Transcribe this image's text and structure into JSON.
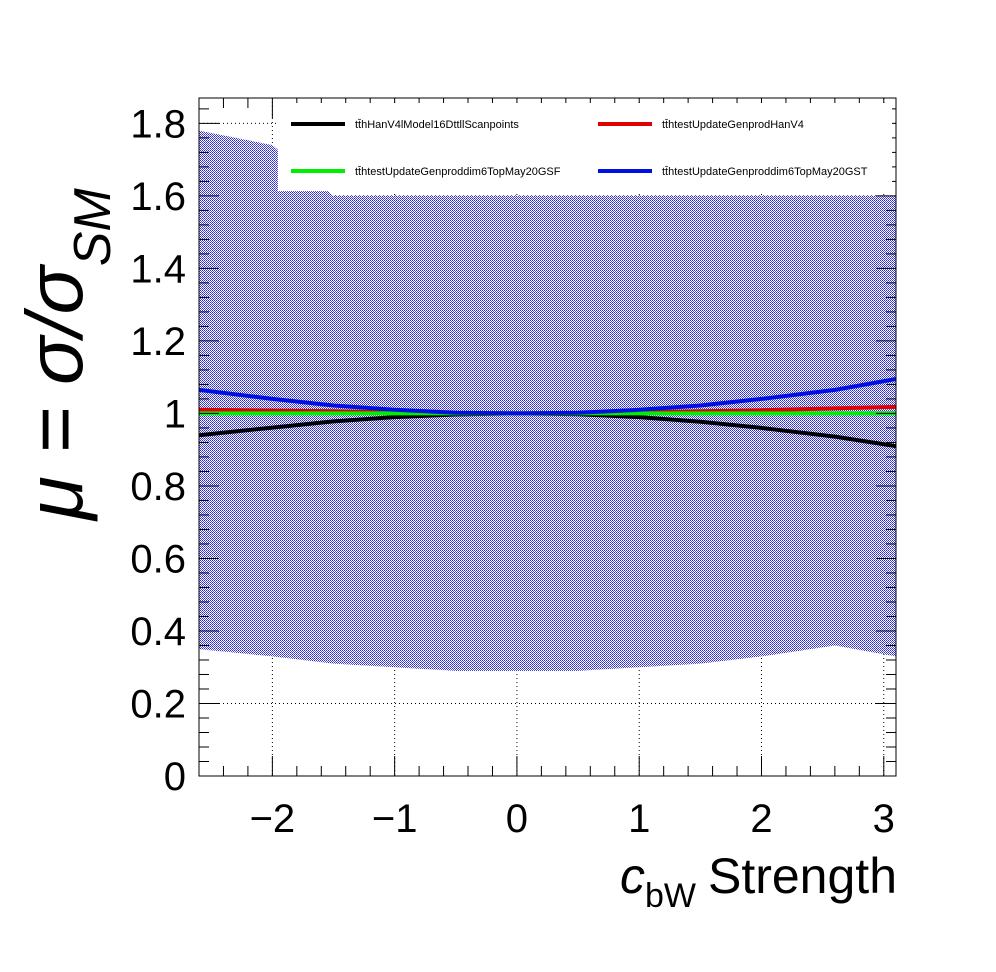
{
  "chart_data": {
    "type": "line",
    "xlabel_symbol": "c",
    "xlabel_subscript": "bW",
    "xlabel_text": "Strength",
    "ylabel_prefix": "μ = σ/σ",
    "ylabel_subscript": "SM",
    "xlim": [
      -2.6,
      3.1
    ],
    "ylim": [
      0,
      1.87
    ],
    "xticks": [
      -2,
      -1,
      0,
      1,
      2,
      3
    ],
    "xtick_labels": [
      "−2",
      "−1",
      "0",
      "1",
      "2",
      "3"
    ],
    "yticks": [
      0,
      0.2,
      0.4,
      0.6,
      0.8,
      1,
      1.2,
      1.4,
      1.6,
      1.8
    ],
    "ytick_labels": [
      "0",
      "0.2",
      "0.4",
      "0.6",
      "0.8",
      "1",
      "1.2",
      "1.4",
      "1.6",
      "1.8"
    ],
    "grid": true,
    "band": {
      "color": "#2a2ad0",
      "x": [
        -2.6,
        -2.0,
        -1.5,
        -1.0,
        -0.5,
        0.0,
        0.5,
        1.0,
        1.5,
        2.0,
        2.6,
        3.1
      ],
      "upper": [
        1.78,
        1.74,
        1.6,
        1.6,
        1.6,
        1.6,
        1.6,
        1.6,
        1.6,
        1.6,
        1.6,
        1.6
      ],
      "lower": [
        0.35,
        0.33,
        0.31,
        0.3,
        0.29,
        0.29,
        0.29,
        0.3,
        0.31,
        0.33,
        0.36,
        0.33
      ]
    },
    "series": [
      {
        "name": "tt̄hHanV4lModel16DttllScanpoints",
        "color": "#000000",
        "x": [
          -2.6,
          -2.0,
          -1.5,
          -1.0,
          -0.5,
          0.0,
          0.5,
          1.0,
          1.5,
          2.0,
          2.6,
          3.1
        ],
        "values": [
          0.94,
          0.961,
          0.978,
          0.99,
          0.997,
          1.0,
          0.998,
          0.99,
          0.977,
          0.96,
          0.936,
          0.91
        ]
      },
      {
        "name": "tt̄htestUpdateGenprodHanV4",
        "color": "#e00000",
        "x": [
          -2.6,
          -2.0,
          -1.5,
          -1.0,
          -0.5,
          0.0,
          0.5,
          1.0,
          1.5,
          2.0,
          2.6,
          3.1
        ],
        "values": [
          1.01,
          1.008,
          1.006,
          1.003,
          1.001,
          1.0,
          1.001,
          1.003,
          1.006,
          1.009,
          1.014,
          1.018
        ]
      },
      {
        "name": "tt̄htestUpdateGenproddim6TopMay20GSF",
        "color": "#00ee00",
        "x": [
          -2.6,
          -2.0,
          -1.5,
          -1.0,
          -0.5,
          0.0,
          0.5,
          1.0,
          1.5,
          2.0,
          2.6,
          3.1
        ],
        "values": [
          1.0,
          1.0,
          1.0,
          1.0,
          1.0,
          1.0,
          1.0,
          1.0,
          1.0,
          1.0,
          1.0,
          1.0
        ]
      },
      {
        "name": "tt̄htestUpdateGenproddim6TopMay20GST",
        "color": "#0010e0",
        "x": [
          -2.6,
          -2.0,
          -1.5,
          -1.0,
          -0.5,
          0.0,
          0.5,
          1.0,
          1.5,
          2.0,
          2.6,
          3.1
        ],
        "values": [
          1.065,
          1.04,
          1.022,
          1.01,
          1.002,
          1.0,
          1.002,
          1.01,
          1.022,
          1.04,
          1.065,
          1.095
        ]
      }
    ]
  }
}
